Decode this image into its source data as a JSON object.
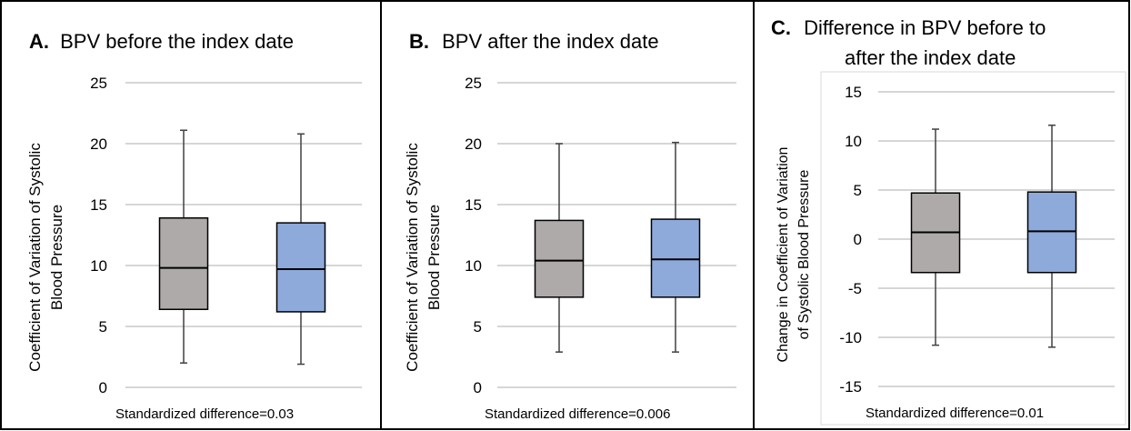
{
  "chart_data": [
    {
      "type": "box",
      "panel_letter": "A.",
      "title": "BPV before the index date",
      "ylabel_line1": "Coefficient of Variation of Systolic",
      "ylabel_line2": "Blood Pressure",
      "ylim": [
        0,
        25
      ],
      "ticks": [
        0,
        5,
        10,
        15,
        20,
        25
      ],
      "tick_labels": [
        "0",
        "5",
        "10",
        "15",
        "20",
        "25"
      ],
      "grid": true,
      "footnote": "Standardized difference=0.03",
      "boxes": [
        {
          "color": "#aeaaaa",
          "whisker_low": 2.0,
          "q1": 6.4,
          "median": 9.8,
          "q3": 13.9,
          "whisker_high": 21.1
        },
        {
          "color": "#8eaadb",
          "whisker_low": 1.9,
          "q1": 6.2,
          "median": 9.7,
          "q3": 13.5,
          "whisker_high": 20.8
        }
      ]
    },
    {
      "type": "box",
      "panel_letter": "B.",
      "title": "BPV after the index date",
      "ylabel_line1": "Coefficient of Variation of Systolic",
      "ylabel_line2": "Blood Pressure",
      "ylim": [
        0,
        25
      ],
      "ticks": [
        0,
        5,
        10,
        15,
        20,
        25
      ],
      "tick_labels": [
        "0",
        "5",
        "10",
        "15",
        "20",
        "25"
      ],
      "grid": true,
      "footnote": "Standardized difference=0.006",
      "boxes": [
        {
          "color": "#aeaaaa",
          "whisker_low": 2.9,
          "q1": 7.4,
          "median": 10.4,
          "q3": 13.7,
          "whisker_high": 20.0
        },
        {
          "color": "#8eaadb",
          "whisker_low": 2.9,
          "q1": 7.4,
          "median": 10.5,
          "q3": 13.8,
          "whisker_high": 20.1
        }
      ]
    },
    {
      "type": "box",
      "panel_letter": "C.",
      "title": "Difference in BPV before to",
      "title_line2": "after the index date",
      "ylabel_line1": "Change in Coefficient of Variation",
      "ylabel_line2": "of Systolic Blood Pressure",
      "ylim": [
        -15,
        15
      ],
      "ticks": [
        -15,
        -10,
        -5,
        0,
        5,
        10,
        15
      ],
      "tick_labels": [
        "-15",
        "-10",
        "-5",
        "0",
        "5",
        "10",
        "15"
      ],
      "grid": true,
      "footnote": "Standardized difference=0.01",
      "boxes": [
        {
          "color": "#aeaaaa",
          "whisker_low": -10.8,
          "q1": -3.4,
          "median": 0.7,
          "q3": 4.7,
          "whisker_high": 11.2
        },
        {
          "color": "#8eaadb",
          "whisker_low": -11.0,
          "q1": -3.4,
          "median": 0.8,
          "q3": 4.8,
          "whisker_high": 11.6
        }
      ]
    }
  ]
}
